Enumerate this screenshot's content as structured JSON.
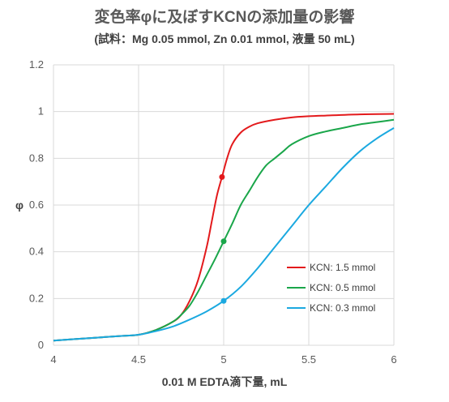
{
  "chart_data": {
    "type": "line",
    "title": "変色率φに及ぼすKCNの添加量の影響",
    "subtitle": "(試料：Mg 0.05 mmol, Zn 0.01 mmol, 液量 50 mL)",
    "xlabel": "0.01 M EDTA滴下量, mL",
    "ylabel": "φ",
    "xlim": [
      4,
      6
    ],
    "ylim": [
      0,
      1.2
    ],
    "xticks": [
      4,
      4.5,
      5,
      5.5,
      6
    ],
    "xtick_labels": [
      "4",
      "4.5",
      "5",
      "5.5",
      "6"
    ],
    "yticks": [
      0,
      0.2,
      0.4,
      0.6,
      0.8,
      1,
      1.2
    ],
    "ytick_labels": [
      "0",
      "0.2",
      "0.4",
      "0.6",
      "0.8",
      "1",
      "1.2"
    ],
    "grid": true,
    "legend_position": "right",
    "series": [
      {
        "name": "KCN: 1.5 mmol",
        "color": "#e31a1c",
        "marker": [
          4.99,
          0.72
        ],
        "x": [
          4.0,
          4.2,
          4.4,
          4.5,
          4.6,
          4.7,
          4.75,
          4.8,
          4.85,
          4.9,
          4.93,
          4.96,
          4.99,
          5.02,
          5.05,
          5.1,
          5.15,
          5.2,
          5.3,
          5.4,
          5.5,
          5.6,
          5.8,
          6.0
        ],
        "y": [
          0.02,
          0.03,
          0.04,
          0.045,
          0.065,
          0.1,
          0.13,
          0.19,
          0.28,
          0.42,
          0.53,
          0.64,
          0.72,
          0.8,
          0.86,
          0.91,
          0.935,
          0.95,
          0.965,
          0.975,
          0.98,
          0.983,
          0.988,
          0.99
        ]
      },
      {
        "name": "KCN: 0.5 mmol",
        "color": "#1aa64a",
        "marker": [
          5.0,
          0.445
        ],
        "x": [
          4.0,
          4.2,
          4.4,
          4.5,
          4.6,
          4.7,
          4.75,
          4.8,
          4.85,
          4.9,
          4.95,
          5.0,
          5.05,
          5.1,
          5.15,
          5.2,
          5.25,
          5.3,
          5.35,
          5.4,
          5.5,
          5.6,
          5.7,
          5.8,
          5.9,
          6.0
        ],
        "y": [
          0.02,
          0.03,
          0.04,
          0.045,
          0.065,
          0.1,
          0.13,
          0.17,
          0.23,
          0.3,
          0.37,
          0.445,
          0.52,
          0.6,
          0.66,
          0.72,
          0.77,
          0.8,
          0.83,
          0.86,
          0.895,
          0.915,
          0.93,
          0.945,
          0.955,
          0.965
        ]
      },
      {
        "name": "KCN: 0.3 mmol",
        "color": "#1ba9e0",
        "marker": [
          5.0,
          0.19
        ],
        "x": [
          4.0,
          4.2,
          4.4,
          4.5,
          4.6,
          4.7,
          4.8,
          4.9,
          5.0,
          5.1,
          5.2,
          5.3,
          5.4,
          5.5,
          5.6,
          5.7,
          5.8,
          5.9,
          6.0
        ],
        "y": [
          0.02,
          0.03,
          0.04,
          0.045,
          0.06,
          0.08,
          0.11,
          0.145,
          0.19,
          0.25,
          0.33,
          0.42,
          0.51,
          0.6,
          0.68,
          0.76,
          0.83,
          0.885,
          0.93
        ]
      }
    ]
  }
}
